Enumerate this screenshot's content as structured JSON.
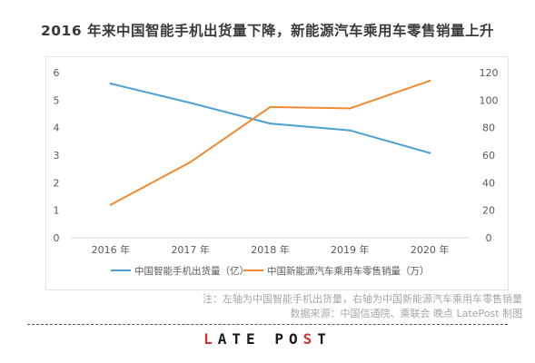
{
  "title": "2016 年来中国智能手机出货量下降，新能源汽车乘用车零售销量上升",
  "chart_data": {
    "type": "line",
    "categories": [
      "2016 年",
      "2017 年",
      "2018 年",
      "2019 年",
      "2020 年"
    ],
    "series": [
      {
        "name": "中国智能手机出货量（亿）",
        "axis": "left",
        "color": "#4a9fd4",
        "values": [
          5.6,
          4.9,
          4.15,
          3.9,
          3.08
        ]
      },
      {
        "name": "中国新能源汽车乘用车零售销量（万）",
        "axis": "right",
        "color": "#f08a32",
        "values": [
          24,
          55,
          95,
          94,
          114
        ]
      }
    ],
    "y_left": {
      "ticks": [
        "0",
        "1",
        "2",
        "3",
        "4",
        "5",
        "6"
      ],
      "ylim": [
        0,
        6
      ]
    },
    "y_right": {
      "ticks": [
        "0",
        "20",
        "40",
        "60",
        "80",
        "100",
        "120"
      ],
      "ylim": [
        0,
        120
      ]
    },
    "grid": false,
    "legend": "bottom"
  },
  "notes": {
    "line1": "注：左轴为中国智能手机出货量，右轴为中国新能源汽车乘用车零售销量",
    "line2": "数据来源：中国信通院、乘联会 晚点 LatePost 制图"
  },
  "brand": {
    "text": "LATE POST",
    "accent_color": "#d0322b"
  }
}
